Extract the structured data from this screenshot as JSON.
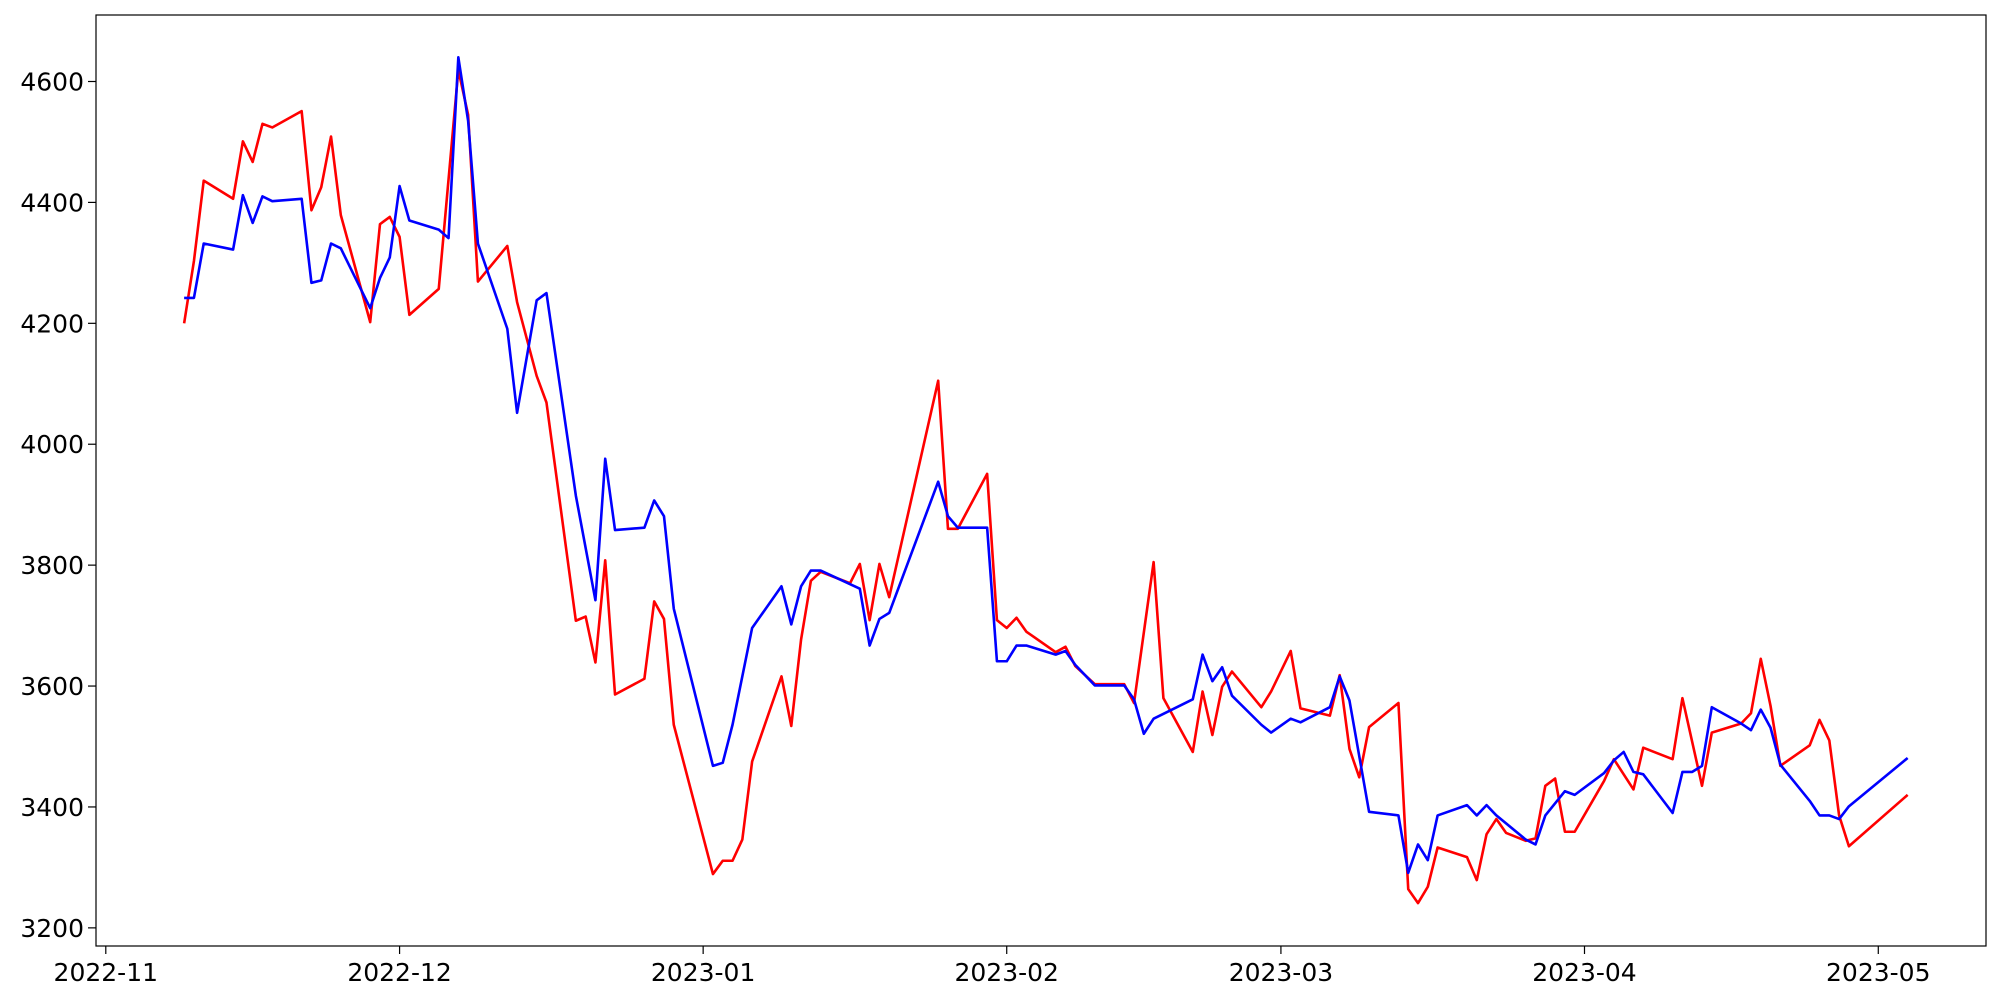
{
  "chart_data": {
    "type": "line",
    "xlim": [
      "2022-10-31",
      "2023-05-12"
    ],
    "xticks": [
      {
        "value": "2022-11-01",
        "label": "2022-11"
      },
      {
        "value": "2022-12-01",
        "label": "2022-12"
      },
      {
        "value": "2023-01-01",
        "label": "2023-01"
      },
      {
        "value": "2023-02-01",
        "label": "2023-02"
      },
      {
        "value": "2023-03-01",
        "label": "2023-03"
      },
      {
        "value": "2023-04-01",
        "label": "2023-04"
      },
      {
        "value": "2023-05-01",
        "label": "2023-05"
      }
    ],
    "ylim": [
      3170,
      4710
    ],
    "yticks": [
      3200,
      3400,
      3600,
      3800,
      4000,
      4200,
      4400,
      4600
    ],
    "series": [
      {
        "color": "#ff0000",
        "x": [
          "2022-11-09",
          "2022-11-10",
          "2022-11-11",
          "2022-11-14",
          "2022-11-15",
          "2022-11-16",
          "2022-11-17",
          "2022-11-18",
          "2022-11-21",
          "2022-11-22",
          "2022-11-23",
          "2022-11-24",
          "2022-11-25",
          "2022-11-28",
          "2022-11-29",
          "2022-11-30",
          "2022-12-01",
          "2022-12-02",
          "2022-12-05",
          "2022-12-07",
          "2022-12-08",
          "2022-12-09",
          "2022-12-12",
          "2022-12-13",
          "2022-12-15",
          "2022-12-16",
          "2022-12-19",
          "2022-12-20",
          "2022-12-21",
          "2022-12-22",
          "2022-12-23",
          "2022-12-26",
          "2022-12-27",
          "2022-12-28",
          "2022-12-29",
          "2023-01-02",
          "2023-01-03",
          "2023-01-04",
          "2023-01-05",
          "2023-01-06",
          "2023-01-09",
          "2023-01-10",
          "2023-01-11",
          "2023-01-12",
          "2023-01-13",
          "2023-01-16",
          "2023-01-17",
          "2023-01-18",
          "2023-01-19",
          "2023-01-20",
          "2023-01-25",
          "2023-01-26",
          "2023-01-27",
          "2023-01-30",
          "2023-01-31",
          "2023-02-01",
          "2023-02-02",
          "2023-02-03",
          "2023-02-06",
          "2023-02-07",
          "2023-02-08",
          "2023-02-10",
          "2023-02-13",
          "2023-02-14",
          "2023-02-16",
          "2023-02-17",
          "2023-02-20",
          "2023-02-21",
          "2023-02-22",
          "2023-02-23",
          "2023-02-24",
          "2023-02-27",
          "2023-02-28",
          "2023-03-02",
          "2023-03-03",
          "2023-03-06",
          "2023-03-07",
          "2023-03-08",
          "2023-03-09",
          "2023-03-10",
          "2023-03-13",
          "2023-03-14",
          "2023-03-15",
          "2023-03-16",
          "2023-03-17",
          "2023-03-20",
          "2023-03-21",
          "2023-03-22",
          "2023-03-23",
          "2023-03-24",
          "2023-03-26",
          "2023-03-27",
          "2023-03-28",
          "2023-03-29",
          "2023-03-30",
          "2023-03-31",
          "2023-04-03",
          "2023-04-04",
          "2023-04-06",
          "2023-04-07",
          "2023-04-10",
          "2023-04-11",
          "2023-04-13",
          "2023-04-14",
          "2023-04-17",
          "2023-04-18",
          "2023-04-19",
          "2023-04-20",
          "2023-04-21",
          "2023-04-24",
          "2023-04-25",
          "2023-04-26",
          "2023-04-27",
          "2023-04-28",
          "2023-05-04"
        ],
        "values": [
          4200,
          4303,
          4436,
          4406,
          4501,
          4467,
          4530,
          4524,
          4551,
          4387,
          4425,
          4509,
          4379,
          4202,
          4364,
          4376,
          4343,
          4214,
          4257,
          4619,
          4545,
          4269,
          4328,
          4235,
          4113,
          4069,
          3708,
          3715,
          3639,
          3808,
          3586,
          3612,
          3740,
          3711,
          3536,
          3289,
          3311,
          3311,
          3346,
          3475,
          3616,
          3534,
          3677,
          3774,
          3789,
          3770,
          3802,
          3709,
          3802,
          3747,
          4105,
          3860,
          3860,
          3951,
          3709,
          3696,
          3713,
          3690,
          3656,
          3665,
          3633,
          3603,
          3603,
          3572,
          3805,
          3580,
          3491,
          3591,
          3519,
          3599,
          3624,
          3565,
          3591,
          3658,
          3563,
          3551,
          3618,
          3496,
          3449,
          3532,
          3572,
          3264,
          3241,
          3268,
          3333,
          3317,
          3279,
          3355,
          3380,
          3357,
          3344,
          3348,
          3435,
          3447,
          3359,
          3359,
          3443,
          3479,
          3429,
          3498,
          3479,
          3580,
          3435,
          3523,
          3538,
          3555,
          3645,
          3567,
          3468,
          3502,
          3544,
          3510,
          3386,
          3335,
          3420
        ]
      },
      {
        "color": "#0000ff",
        "x": [
          "2022-11-09",
          "2022-11-10",
          "2022-11-11",
          "2022-11-14",
          "2022-11-15",
          "2022-11-16",
          "2022-11-17",
          "2022-11-18",
          "2022-11-21",
          "2022-11-22",
          "2022-11-23",
          "2022-11-24",
          "2022-11-25",
          "2022-11-28",
          "2022-11-29",
          "2022-11-30",
          "2022-12-01",
          "2022-12-02",
          "2022-12-05",
          "2022-12-06",
          "2022-12-07",
          "2022-12-08",
          "2022-12-09",
          "2022-12-12",
          "2022-12-13",
          "2022-12-15",
          "2022-12-16",
          "2022-12-19",
          "2022-12-21",
          "2022-12-22",
          "2022-12-23",
          "2022-12-26",
          "2022-12-27",
          "2022-12-28",
          "2022-12-29",
          "2023-01-02",
          "2023-01-03",
          "2023-01-04",
          "2023-01-06",
          "2023-01-09",
          "2023-01-10",
          "2023-01-11",
          "2023-01-12",
          "2023-01-13",
          "2023-01-17",
          "2023-01-18",
          "2023-01-19",
          "2023-01-20",
          "2023-01-25",
          "2023-01-26",
          "2023-01-27",
          "2023-01-30",
          "2023-01-31",
          "2023-02-01",
          "2023-02-02",
          "2023-02-03",
          "2023-02-06",
          "2023-02-07",
          "2023-02-08",
          "2023-02-10",
          "2023-02-13",
          "2023-02-14",
          "2023-02-15",
          "2023-02-16",
          "2023-02-20",
          "2023-02-21",
          "2023-02-22",
          "2023-02-23",
          "2023-02-24",
          "2023-02-27",
          "2023-02-28",
          "2023-03-02",
          "2023-03-03",
          "2023-03-06",
          "2023-03-07",
          "2023-03-08",
          "2023-03-10",
          "2023-03-13",
          "2023-03-14",
          "2023-03-15",
          "2023-03-16",
          "2023-03-17",
          "2023-03-20",
          "2023-03-21",
          "2023-03-22",
          "2023-03-23",
          "2023-03-26",
          "2023-03-27",
          "2023-03-28",
          "2023-03-30",
          "2023-03-31",
          "2023-04-03",
          "2023-04-04",
          "2023-04-05",
          "2023-04-06",
          "2023-04-07",
          "2023-04-10",
          "2023-04-11",
          "2023-04-12",
          "2023-04-13",
          "2023-04-14",
          "2023-04-17",
          "2023-04-18",
          "2023-04-19",
          "2023-04-20",
          "2023-04-21",
          "2023-04-24",
          "2023-04-25",
          "2023-04-26",
          "2023-04-27",
          "2023-04-28",
          "2023-05-04"
        ],
        "values": [
          4242,
          4242,
          4332,
          4322,
          4412,
          4366,
          4410,
          4402,
          4406,
          4267,
          4271,
          4332,
          4324,
          4225,
          4275,
          4309,
          4427,
          4370,
          4355,
          4341,
          4640,
          4535,
          4332,
          4191,
          4052,
          4238,
          4250,
          3915,
          3742,
          3976,
          3858,
          3862,
          3907,
          3881,
          3728,
          3468,
          3473,
          3536,
          3696,
          3765,
          3702,
          3765,
          3791,
          3791,
          3761,
          3667,
          3711,
          3721,
          3938,
          3881,
          3862,
          3862,
          3641,
          3641,
          3667,
          3667,
          3652,
          3658,
          3635,
          3601,
          3601,
          3578,
          3521,
          3546,
          3578,
          3652,
          3608,
          3631,
          3584,
          3536,
          3523,
          3546,
          3540,
          3565,
          3616,
          3576,
          3392,
          3386,
          3291,
          3338,
          3312,
          3386,
          3403,
          3386,
          3403,
          3386,
          3346,
          3338,
          3386,
          3426,
          3420,
          3456,
          3477,
          3491,
          3458,
          3454,
          3390,
          3458,
          3458,
          3468,
          3565,
          3538,
          3527,
          3561,
          3531,
          3470,
          3410,
          3386,
          3386,
          3380,
          3401,
          3481
        ]
      }
    ]
  }
}
